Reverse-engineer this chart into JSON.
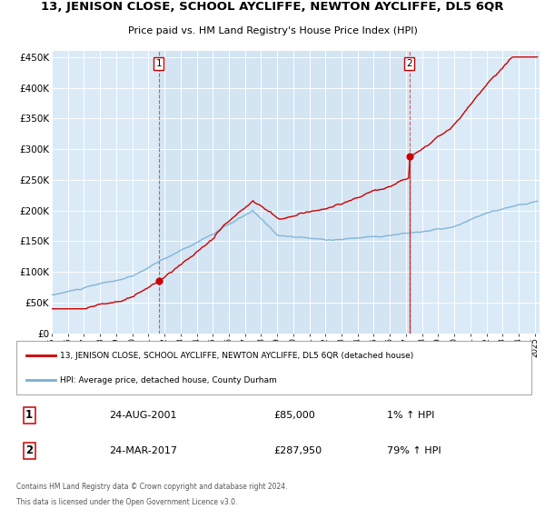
{
  "title": "13, JENISON CLOSE, SCHOOL AYCLIFFE, NEWTON AYCLIFFE, DL5 6QR",
  "subtitle": "Price paid vs. HM Land Registry's House Price Index (HPI)",
  "legend_line1": "13, JENISON CLOSE, SCHOOL AYCLIFFE, NEWTON AYCLIFFE, DL5 6QR (detached house)",
  "legend_line2": "HPI: Average price, detached house, County Durham",
  "sale1_date": "24-AUG-2001",
  "sale1_price": "£85,000",
  "sale1_hpi": "1% ↑ HPI",
  "sale1_year": 2001.64,
  "sale1_value": 85000,
  "sale2_date": "24-MAR-2017",
  "sale2_price": "£287,950",
  "sale2_hpi": "79% ↑ HPI",
  "sale2_year": 2017.21,
  "sale2_value": 287950,
  "hpi_color": "#7bafd4",
  "price_color": "#cc0000",
  "plot_bg": "#daeaf7",
  "plot_bg2": "#cde0f0",
  "grid_color": "#ffffff",
  "ylim": [
    0,
    460000
  ],
  "yticks": [
    0,
    50000,
    100000,
    150000,
    200000,
    250000,
    300000,
    350000,
    400000,
    450000
  ],
  "footer_line1": "Contains HM Land Registry data © Crown copyright and database right 2024.",
  "footer_line2": "This data is licensed under the Open Government Licence v3.0."
}
